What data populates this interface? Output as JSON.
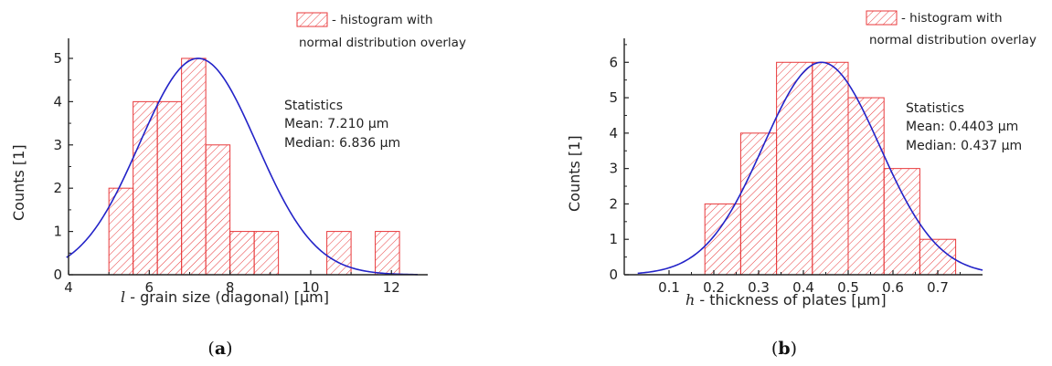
{
  "legend_label": "- histogram with normal distribution overlay",
  "legend_lines": [
    "- histogram with",
    "normal distribution overlay"
  ],
  "colors": {
    "bar": "#e8393b",
    "curve": "#2323c8",
    "axis": "#222222"
  },
  "chart_data": [
    {
      "panel": "(a)",
      "type": "bar",
      "subtype": "histogram",
      "xlabel_var": "l",
      "xlabel": " - grain size (diagonal)   [μm]",
      "ylabel": "Counts   [1]",
      "xlim": [
        4,
        12.9
      ],
      "ylim": [
        0,
        5.4
      ],
      "xticks": [
        4,
        6,
        8,
        10,
        12
      ],
      "yticks": [
        0,
        1,
        2,
        3,
        4,
        5
      ],
      "bin_width": 0.6,
      "bins": [
        {
          "x0": 5.0,
          "x1": 5.6,
          "count": 2
        },
        {
          "x0": 5.6,
          "x1": 6.2,
          "count": 4
        },
        {
          "x0": 6.2,
          "x1": 6.8,
          "count": 4
        },
        {
          "x0": 6.8,
          "x1": 7.4,
          "count": 5
        },
        {
          "x0": 7.4,
          "x1": 8.0,
          "count": 3
        },
        {
          "x0": 8.0,
          "x1": 8.6,
          "count": 1
        },
        {
          "x0": 8.6,
          "x1": 9.2,
          "count": 1
        },
        {
          "x0": 10.4,
          "x1": 11.0,
          "count": 1
        },
        {
          "x0": 11.6,
          "x1": 12.2,
          "count": 1
        }
      ],
      "normal_fit": {
        "mean": 7.21,
        "sd": 1.45,
        "peak": 5.0,
        "x_range": [
          3.95,
          12.65
        ]
      },
      "statistics": {
        "title": "Statistics",
        "mean": "Mean: 7.210 μm",
        "median": "Median: 6.836 μm"
      }
    },
    {
      "panel": "(b)",
      "type": "bar",
      "subtype": "histogram",
      "xlabel_var": "h",
      "xlabel": " - thickness of plates   [μm]",
      "ylabel": "Counts   [1]",
      "xlim": [
        0.0,
        0.8
      ],
      "ylim": [
        0,
        6.6
      ],
      "xticks": [
        0.1,
        0.2,
        0.3,
        0.4,
        0.5,
        0.6,
        0.7
      ],
      "yticks": [
        0,
        1,
        2,
        3,
        4,
        5,
        6
      ],
      "bin_width": 0.08,
      "bins": [
        {
          "x0": 0.18,
          "x1": 0.26,
          "count": 2
        },
        {
          "x0": 0.26,
          "x1": 0.34,
          "count": 4
        },
        {
          "x0": 0.34,
          "x1": 0.42,
          "count": 6
        },
        {
          "x0": 0.42,
          "x1": 0.5,
          "count": 6
        },
        {
          "x0": 0.5,
          "x1": 0.58,
          "count": 5
        },
        {
          "x0": 0.58,
          "x1": 0.66,
          "count": 3
        },
        {
          "x0": 0.66,
          "x1": 0.74,
          "count": 1
        }
      ],
      "normal_fit": {
        "mean": 0.4403,
        "sd": 0.13,
        "peak": 6.0,
        "x_range": [
          0.03,
          0.8
        ]
      },
      "statistics": {
        "title": "Statistics",
        "mean": "Mean: 0.4403 μm",
        "median": "Median: 0.437 μm"
      }
    }
  ]
}
